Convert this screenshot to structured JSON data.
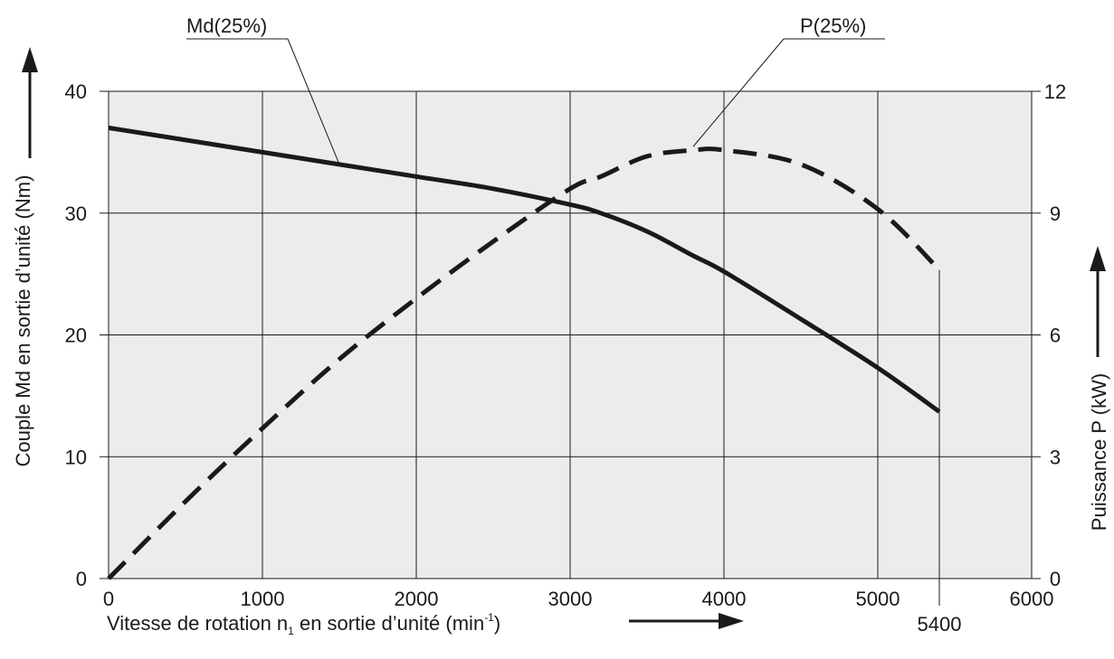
{
  "chart_data": {
    "type": "line",
    "x": [
      0,
      500,
      1000,
      1500,
      2000,
      2500,
      3000,
      3200,
      3500,
      3800,
      4000,
      4500,
      5000,
      5400
    ],
    "series": [
      {
        "name": "Md(25%)",
        "axis": "left",
        "style": "solid",
        "color": "#1a1a1a",
        "values": [
          37,
          36,
          35,
          34,
          33,
          32,
          30.7,
          30,
          28.5,
          26.5,
          25.2,
          21.3,
          17.3,
          13.7
        ]
      },
      {
        "name": "P(25%)",
        "axis": "right",
        "style": "dashed",
        "color": "#1a1a1a",
        "values": [
          0,
          1.9,
          3.7,
          5.4,
          6.9,
          8.3,
          9.6,
          9.9,
          10.4,
          10.55,
          10.55,
          10.2,
          9.1,
          7.6
        ]
      }
    ],
    "xlim": [
      0,
      6000
    ],
    "xticks": [
      "0",
      "1000",
      "2000",
      "3000",
      "4000",
      "5000",
      "6000"
    ],
    "xticks_values": [
      0,
      1000,
      2000,
      3000,
      4000,
      5000,
      6000
    ],
    "x_extra_tick": {
      "value": 5400,
      "label": "5400"
    },
    "ylim_left": [
      0,
      40
    ],
    "yticks_left": [
      "0",
      "10",
      "20",
      "30",
      "40"
    ],
    "yticks_left_values": [
      0,
      10,
      20,
      30,
      40
    ],
    "ylim_right": [
      0,
      12
    ],
    "yticks_right": [
      "0",
      "3",
      "6",
      "9",
      "12"
    ],
    "yticks_right_values": [
      0,
      3,
      6,
      9,
      12
    ],
    "xlabel_main": "Vitesse de rotation n",
    "xlabel_sub": "1",
    "xlabel_mid": " en sortie d’unité (min",
    "xlabel_sup": "-1",
    "xlabel_end": ")",
    "ylabel_left": "Couple Md en sortie d’unité (Nm)",
    "ylabel_right": "Puissance P (kW)",
    "annotations": [
      {
        "text": "Md(25%)",
        "series": "Md(25%)",
        "at_x": 1500
      },
      {
        "text": "P(25%)",
        "series": "P(25%)",
        "at_x": 3800
      }
    ],
    "grid": true,
    "plot_background": "#ececec"
  }
}
